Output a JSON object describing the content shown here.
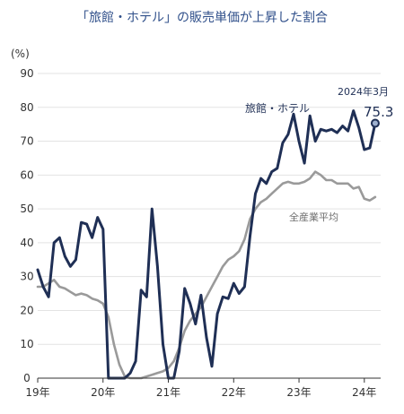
{
  "chart_data": {
    "type": "line",
    "title": "「旅館・ホテル」の販売単価が上昇した割合",
    "y_unit": "(%)",
    "ylim": [
      0,
      90
    ],
    "y_ticks": [
      0,
      10,
      20,
      30,
      40,
      50,
      60,
      70,
      80,
      90
    ],
    "x_start": "2019-01",
    "x_end": "2024-04",
    "x_ticks": [
      {
        "label": "19年",
        "month": "2019-01"
      },
      {
        "label": "20年",
        "month": "2020-01"
      },
      {
        "label": "21年",
        "month": "2021-01"
      },
      {
        "label": "22年",
        "month": "2022-01"
      },
      {
        "label": "23年",
        "month": "2023-01"
      },
      {
        "label": "24年",
        "month": "2024-01"
      }
    ],
    "grid": "horizontal",
    "series": [
      {
        "name": "旅館・ホテル",
        "color": "#1f2f55",
        "values": [
          [
            "2019-01",
            32
          ],
          [
            "2019-02",
            27
          ],
          [
            "2019-03",
            24
          ],
          [
            "2019-04",
            40
          ],
          [
            "2019-05",
            41.5
          ],
          [
            "2019-06",
            36
          ],
          [
            "2019-07",
            33
          ],
          [
            "2019-08",
            35
          ],
          [
            "2019-09",
            46
          ],
          [
            "2019-10",
            45.5
          ],
          [
            "2019-11",
            41.5
          ],
          [
            "2019-12",
            47.5
          ],
          [
            "2020-01",
            44
          ],
          [
            "2020-02",
            0
          ],
          [
            "2020-03",
            0
          ],
          [
            "2020-04",
            0
          ],
          [
            "2020-05",
            0
          ],
          [
            "2020-06",
            1.5
          ],
          [
            "2020-07",
            5
          ],
          [
            "2020-08",
            26
          ],
          [
            "2020-09",
            24
          ],
          [
            "2020-10",
            50
          ],
          [
            "2020-11",
            33
          ],
          [
            "2020-12",
            10
          ],
          [
            "2021-01",
            0
          ],
          [
            "2021-02",
            0
          ],
          [
            "2021-03",
            8
          ],
          [
            "2021-04",
            26.5
          ],
          [
            "2021-05",
            22
          ],
          [
            "2021-06",
            16
          ],
          [
            "2021-07",
            24.5
          ],
          [
            "2021-08",
            12
          ],
          [
            "2021-09",
            3.5
          ],
          [
            "2021-10",
            19
          ],
          [
            "2021-11",
            24
          ],
          [
            "2021-12",
            23.5
          ],
          [
            "2022-01",
            28
          ],
          [
            "2022-02",
            25
          ],
          [
            "2022-03",
            27
          ],
          [
            "2022-04",
            42
          ],
          [
            "2022-05",
            54.5
          ],
          [
            "2022-06",
            59
          ],
          [
            "2022-07",
            57.5
          ],
          [
            "2022-08",
            61
          ],
          [
            "2022-09",
            62
          ],
          [
            "2022-10",
            69.5
          ],
          [
            "2022-11",
            72
          ],
          [
            "2022-12",
            78
          ],
          [
            "2023-01",
            70
          ],
          [
            "2023-02",
            63.5
          ],
          [
            "2023-03",
            77.5
          ],
          [
            "2023-04",
            70
          ],
          [
            "2023-05",
            73.5
          ],
          [
            "2023-06",
            73
          ],
          [
            "2023-07",
            73.5
          ],
          [
            "2023-08",
            72.5
          ],
          [
            "2023-09",
            74.5
          ],
          [
            "2023-10",
            73
          ],
          [
            "2023-11",
            79
          ],
          [
            "2023-12",
            74
          ],
          [
            "2024-01",
            67.5
          ],
          [
            "2024-02",
            68
          ],
          [
            "2024-03",
            75.3
          ]
        ]
      },
      {
        "name": "全産業平均",
        "color": "#9a9a9a",
        "values": [
          [
            "2019-01",
            27
          ],
          [
            "2019-02",
            27
          ],
          [
            "2019-03",
            28
          ],
          [
            "2019-04",
            29
          ],
          [
            "2019-05",
            27
          ],
          [
            "2019-06",
            26.5
          ],
          [
            "2019-07",
            25.5
          ],
          [
            "2019-08",
            24.5
          ],
          [
            "2019-09",
            25
          ],
          [
            "2019-10",
            24.5
          ],
          [
            "2019-11",
            23.5
          ],
          [
            "2019-12",
            23
          ],
          [
            "2020-01",
            22
          ],
          [
            "2020-02",
            18
          ],
          [
            "2020-03",
            10
          ],
          [
            "2020-04",
            4
          ],
          [
            "2020-05",
            0.5
          ],
          [
            "2020-06",
            0
          ],
          [
            "2020-07",
            0
          ],
          [
            "2020-08",
            0
          ],
          [
            "2020-09",
            0.5
          ],
          [
            "2020-10",
            1
          ],
          [
            "2020-11",
            1.5
          ],
          [
            "2020-12",
            2
          ],
          [
            "2021-01",
            3
          ],
          [
            "2021-02",
            5
          ],
          [
            "2021-03",
            9
          ],
          [
            "2021-04",
            14
          ],
          [
            "2021-05",
            17
          ],
          [
            "2021-06",
            19
          ],
          [
            "2021-07",
            21
          ],
          [
            "2021-08",
            24
          ],
          [
            "2021-09",
            27
          ],
          [
            "2021-10",
            30
          ],
          [
            "2021-11",
            33
          ],
          [
            "2021-12",
            35
          ],
          [
            "2022-01",
            36
          ],
          [
            "2022-02",
            37.5
          ],
          [
            "2022-03",
            41
          ],
          [
            "2022-04",
            47
          ],
          [
            "2022-05",
            50
          ],
          [
            "2022-06",
            52
          ],
          [
            "2022-07",
            53
          ],
          [
            "2022-08",
            54.5
          ],
          [
            "2022-09",
            56
          ],
          [
            "2022-10",
            57.5
          ],
          [
            "2022-11",
            58
          ],
          [
            "2022-12",
            57.5
          ],
          [
            "2023-01",
            57.5
          ],
          [
            "2023-02",
            58
          ],
          [
            "2023-03",
            59
          ],
          [
            "2023-04",
            61
          ],
          [
            "2023-05",
            60
          ],
          [
            "2023-06",
            58.5
          ],
          [
            "2023-07",
            58.5
          ],
          [
            "2023-08",
            57.5
          ],
          [
            "2023-09",
            57.5
          ],
          [
            "2023-10",
            57.5
          ],
          [
            "2023-11",
            56
          ],
          [
            "2023-12",
            56.5
          ],
          [
            "2024-01",
            53
          ],
          [
            "2024-02",
            52.5
          ],
          [
            "2024-03",
            53.5
          ]
        ]
      }
    ],
    "annotation": {
      "date_label": "2024年3月",
      "value_label": "75.3",
      "month": "2024-03",
      "value": 75.3
    }
  }
}
